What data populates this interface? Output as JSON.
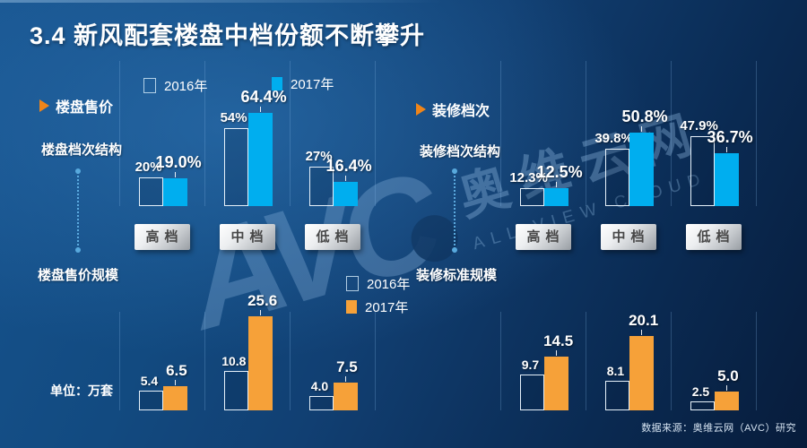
{
  "title": "3.4  新风配套楼盘中档份额不断攀升",
  "source": "数据来源：奥维云网（AVC）研究",
  "unit_label": "单位：万套",
  "categories": [
    "高档",
    "中档",
    "低档"
  ],
  "sections": {
    "left": {
      "arrow_label": "楼盘售价",
      "top_label": "楼盘档次结构",
      "bottom_label": "楼盘售价规模"
    },
    "right": {
      "arrow_label": "装修档次",
      "top_label": "装修档次结构",
      "bottom_label": "装修标准规模"
    }
  },
  "legend_top": {
    "items": [
      {
        "label": "2016年",
        "swatch": "hollow"
      },
      {
        "label": "2017年",
        "swatch": "cyan"
      }
    ]
  },
  "legend_bottom": {
    "items": [
      {
        "label": "2016年",
        "swatch": "hollow"
      },
      {
        "label": "2017年",
        "swatch": "orange"
      }
    ]
  },
  "watermark": {
    "logo": "AVC",
    "cn": "奥维云网",
    "en": "ALL VIEW CLOUD"
  },
  "colors": {
    "background_light": "#17548F",
    "background_dark": "#071C3B",
    "cyan_2017": "#00AEEF",
    "orange_2017": "#F6A139",
    "arrow_orange": "#F08519",
    "hollow_outline": "#E6F1FA",
    "grid_line": "rgba(130,180,225,0.28)"
  },
  "chart_data": [
    {
      "id": "price-structure",
      "type": "bar",
      "title": "楼盘档次结构",
      "unit": "%",
      "categories": [
        "高档",
        "中档",
        "低档"
      ],
      "series": [
        {
          "name": "2016年",
          "style": "hollow",
          "values": [
            20,
            54,
            27
          ],
          "labels": [
            "20%",
            "54%",
            "27%"
          ]
        },
        {
          "name": "2017年",
          "style": "cyan",
          "values": [
            19.0,
            64.4,
            16.4
          ],
          "labels": [
            "19.0%",
            "64.4%",
            "16.4%"
          ]
        }
      ],
      "ylim": [
        0,
        70
      ],
      "axes": "none",
      "data_labels": true,
      "legend_position": "top"
    },
    {
      "id": "decoration-structure",
      "type": "bar",
      "title": "装修档次结构",
      "unit": "%",
      "categories": [
        "高档",
        "中档",
        "低档"
      ],
      "series": [
        {
          "name": "2016年",
          "style": "hollow",
          "values": [
            12.3,
            39.8,
            47.9
          ],
          "labels": [
            "12.3%",
            "39.8%",
            "47.9%"
          ]
        },
        {
          "name": "2017年",
          "style": "cyan",
          "values": [
            12.5,
            50.8,
            36.7
          ],
          "labels": [
            "12.5%",
            "50.8%",
            "36.7%"
          ]
        }
      ],
      "ylim": [
        0,
        70
      ],
      "axes": "none",
      "data_labels": true,
      "legend_position": "shared-top"
    },
    {
      "id": "price-scale",
      "type": "bar",
      "title": "楼盘售价规模",
      "unit": "万套",
      "categories": [
        "高档",
        "中档",
        "低档"
      ],
      "series": [
        {
          "name": "2016年",
          "style": "hollow",
          "values": [
            5.4,
            10.8,
            4.0
          ],
          "labels": [
            "5.4",
            "10.8",
            "4.0"
          ]
        },
        {
          "name": "2017年",
          "style": "orange",
          "values": [
            6.5,
            25.6,
            7.5
          ],
          "labels": [
            "6.5",
            "25.6",
            "7.5"
          ]
        }
      ],
      "ylim": [
        0,
        26
      ],
      "axes": "none",
      "data_labels": true,
      "legend_position": "center"
    },
    {
      "id": "decoration-scale",
      "type": "bar",
      "title": "装修标准规模",
      "unit": "万套",
      "categories": [
        "高档",
        "中档",
        "低档"
      ],
      "series": [
        {
          "name": "2016年",
          "style": "hollow",
          "values": [
            9.7,
            8.1,
            2.5
          ],
          "labels": [
            "9.7",
            "8.1",
            "2.5"
          ]
        },
        {
          "name": "2017年",
          "style": "orange",
          "values": [
            14.5,
            20.1,
            5.0
          ],
          "labels": [
            "14.5",
            "20.1",
            "5.0"
          ]
        }
      ],
      "ylim": [
        0,
        26
      ],
      "axes": "none",
      "data_labels": true,
      "legend_position": "shared-center"
    }
  ]
}
